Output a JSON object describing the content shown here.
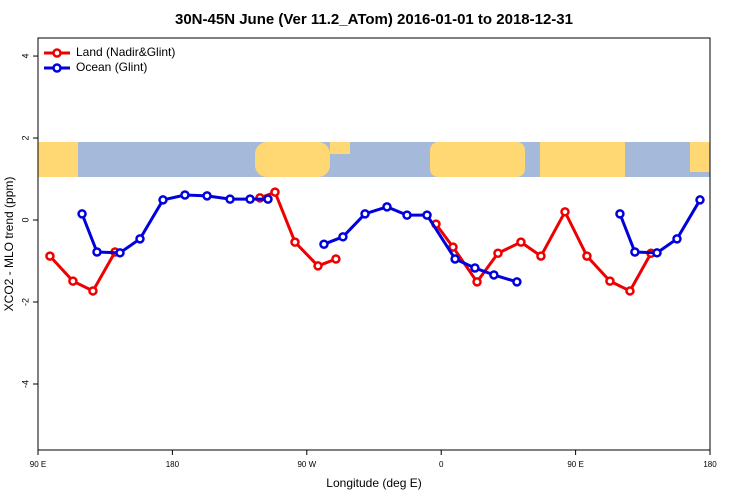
{
  "chart_data": {
    "type": "line",
    "title": "30N-45N June (Ver 11.2_ATom)   2016-01-01 to 2018-12-31",
    "x_label": "Longitude (deg E)",
    "y_label": "XCO2 - MLO trend (ppm)",
    "xlim": [
      90,
      540
    ],
    "ylim": [
      -5.61,
      4.44
    ],
    "xticks": [
      {
        "value": 90,
        "label": "90 E"
      },
      {
        "value": 180,
        "label": "180"
      },
      {
        "value": 270,
        "label": "90 W"
      },
      {
        "value": 360,
        "label": "0"
      },
      {
        "value": 450,
        "label": "90 E"
      },
      {
        "value": 540,
        "label": "180"
      }
    ],
    "yticks": [
      -4,
      -2,
      0,
      2,
      4
    ],
    "legend": "top-left",
    "series": [
      {
        "name": "Land (Nadir&Glint)",
        "color": "#ee0000",
        "x": [
          98,
          113.4,
          126.8,
          141.6,
          null,
          238.6,
          248.7,
          262.1,
          277.5,
          289.5,
          null,
          356.5,
          367.9,
          384,
          398,
          413.4,
          426.8,
          442.9,
          457.6,
          473,
          486.4,
          500.5
        ],
        "values": [
          -0.88,
          -1.49,
          -1.73,
          -0.78,
          null,
          0.54,
          0.68,
          -0.54,
          -1.12,
          -0.95,
          null,
          -0.1,
          -0.66,
          -1.51,
          -0.81,
          -0.54,
          -0.88,
          0.2,
          -0.88,
          -1.49,
          -1.73,
          -0.81
        ]
      },
      {
        "name": "Ocean (Glint)",
        "color": "#0000dd",
        "x": [
          119.5,
          129.5,
          144.9,
          158.3,
          173.7,
          188.4,
          203.2,
          218.6,
          232,
          244,
          null,
          281.5,
          294.2,
          309,
          323.7,
          337.1,
          350.5,
          369.3,
          382.6,
          395.3,
          410.7,
          null,
          479.7,
          489.7,
          504.5,
          517.9,
          533.3
        ],
        "values": [
          0.15,
          -0.78,
          -0.8,
          -0.46,
          0.49,
          0.61,
          0.59,
          0.51,
          0.51,
          0.51,
          null,
          -0.59,
          -0.41,
          0.15,
          0.32,
          0.12,
          0.12,
          -0.95,
          -1.17,
          -1.34,
          -1.51,
          null,
          0.15,
          -0.78,
          -0.8,
          -0.46,
          0.49
        ]
      }
    ]
  }
}
